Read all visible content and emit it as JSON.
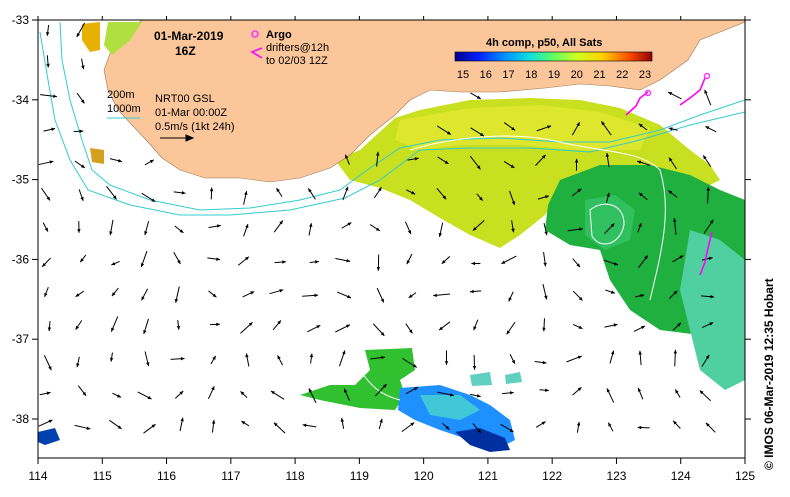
{
  "map": {
    "title_date": "01-Mar-2019",
    "title_hour": "16Z",
    "composite_label": "4h comp, p50, All Sats",
    "colorbar_ticks": [
      "15",
      "16",
      "17",
      "18",
      "19",
      "20",
      "21",
      "22",
      "23"
    ],
    "legend": {
      "argo_label": "Argo",
      "drifters_line1": "drifters@12h",
      "drifters_line2": "to 02/03 12Z"
    },
    "contours": {
      "iso200": "200m",
      "iso1000": "1000m"
    },
    "currents_source": "NRT00 GSL",
    "currents_time": "01-Mar 00:00Z",
    "scale_text": "0.5m/s (1kt 24h)",
    "credit": "© IMOS 06-Mar-2019 12:35 Hobart",
    "x_ticks": [
      "114",
      "115",
      "116",
      "117",
      "118",
      "119",
      "120",
      "121",
      "122",
      "123",
      "124",
      "125"
    ],
    "y_ticks": [
      "-33",
      "-34",
      "-35",
      "-36",
      "-37",
      "-38"
    ],
    "colors": {
      "land": "#fbc69a",
      "bathy": "#33cccc",
      "argo": "#ff33ff",
      "drifter": "#ff00ff"
    }
  }
}
